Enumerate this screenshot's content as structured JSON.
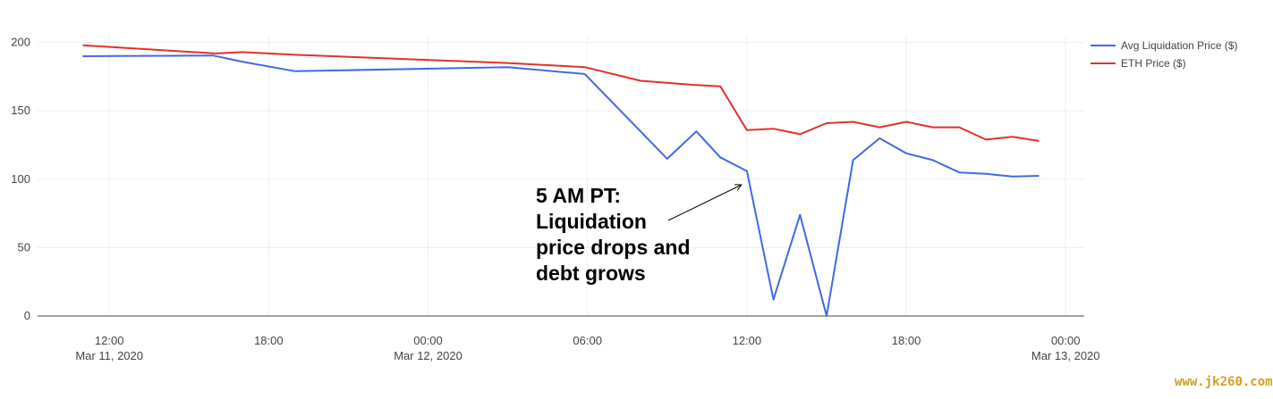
{
  "chart_data": {
    "type": "line",
    "title": "",
    "xlabel": "",
    "ylabel": "",
    "ylim": [
      0,
      205
    ],
    "y_ticks": [
      0,
      50,
      100,
      150,
      200
    ],
    "grid": true,
    "legend_position": "top-right",
    "x_ticks": [
      {
        "t": 12,
        "line1": "12:00",
        "line2": "Mar 11, 2020"
      },
      {
        "t": 18,
        "line1": "18:00",
        "line2": ""
      },
      {
        "t": 24,
        "line1": "00:00",
        "line2": "Mar 12, 2020"
      },
      {
        "t": 30,
        "line1": "06:00",
        "line2": ""
      },
      {
        "t": 36,
        "line1": "12:00",
        "line2": ""
      },
      {
        "t": 42,
        "line1": "18:00",
        "line2": ""
      },
      {
        "t": 48,
        "line1": "00:00",
        "line2": "Mar 13, 2020"
      }
    ],
    "series": [
      {
        "name": "Avg Liquidation Price ($)",
        "color": "#4169e1",
        "points": [
          [
            11,
            190
          ],
          [
            15.9,
            190.5
          ],
          [
            17,
            186
          ],
          [
            19,
            179
          ],
          [
            27,
            182
          ],
          [
            29.9,
            177
          ],
          [
            33,
            115
          ],
          [
            34.1,
            135
          ],
          [
            35,
            116
          ],
          [
            36,
            106
          ],
          [
            37,
            12
          ],
          [
            38,
            74
          ],
          [
            39,
            0
          ],
          [
            40,
            114
          ],
          [
            41,
            130
          ],
          [
            42,
            119
          ],
          [
            43,
            114
          ],
          [
            44,
            105
          ],
          [
            45,
            104
          ],
          [
            46,
            102
          ],
          [
            47,
            102.5
          ]
        ]
      },
      {
        "name": "ETH Price ($)",
        "color": "#e0312b",
        "points": [
          [
            11,
            198
          ],
          [
            16,
            192
          ],
          [
            17,
            193
          ],
          [
            19,
            191
          ],
          [
            27,
            185
          ],
          [
            29.9,
            182
          ],
          [
            32,
            172
          ],
          [
            34,
            169
          ],
          [
            35,
            168
          ],
          [
            36,
            136
          ],
          [
            37,
            137
          ],
          [
            38,
            133
          ],
          [
            39,
            141
          ],
          [
            40,
            142
          ],
          [
            41,
            138
          ],
          [
            42,
            142
          ],
          [
            43,
            138
          ],
          [
            44,
            138
          ],
          [
            45,
            129
          ],
          [
            46,
            131
          ],
          [
            47,
            128
          ]
        ]
      }
    ],
    "annotation": {
      "lines": [
        "5 AM PT:",
        "Liquidation",
        "price drops and",
        "debt grows"
      ],
      "arrow_target": [
        35.8,
        96
      ]
    }
  },
  "watermark": "www.jk260.com",
  "colors": {
    "grid": "#eeeeee",
    "axis": "#444444"
  }
}
